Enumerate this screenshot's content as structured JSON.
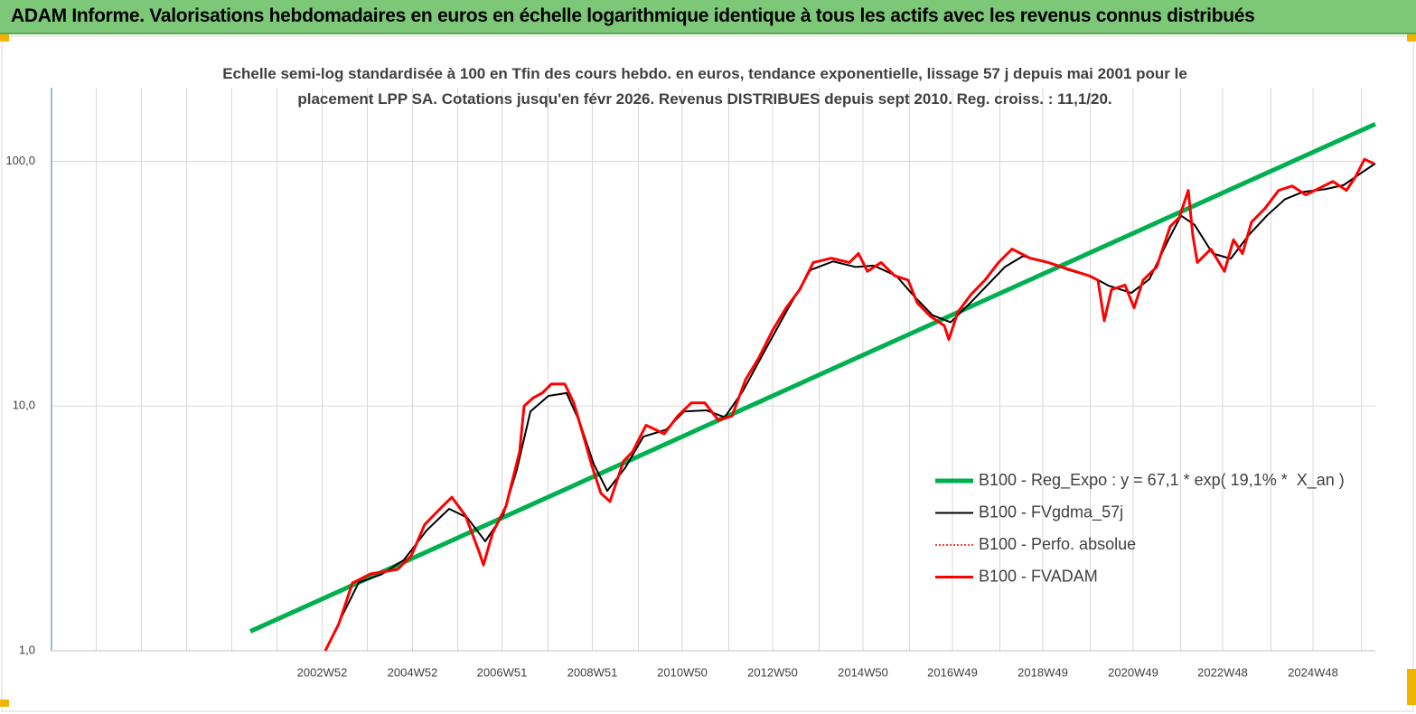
{
  "chart_data": {
    "type": "line",
    "suptitle": "ADAM Informe. Valorisations hebdomadaires en euros en échelle logarithmique identique à tous les actifs avec les revenus connus distribués",
    "title": "Echelle semi-log standardisée à 100 en Tfin des cours hebdo. en euros, tendance exponentielle, lissage 57 j depuis mai 2001 pour le placement LPP SA. Cotations jusqu'en févr 2026. Revenus DISTRIBUES depuis sept 2010. Reg. croiss. : 11,1/20.",
    "y_scale": "log",
    "grid": true,
    "legend_position": "lower right",
    "xlim": [
      1997.0,
      2026.3
    ],
    "xticks": [
      {
        "value": 2002.99,
        "label": "2002W52"
      },
      {
        "value": 2004.99,
        "label": "2004W52"
      },
      {
        "value": 2006.97,
        "label": "2006W51"
      },
      {
        "value": 2008.97,
        "label": "2008W51"
      },
      {
        "value": 2010.96,
        "label": "2010W50"
      },
      {
        "value": 2012.96,
        "label": "2012W50"
      },
      {
        "value": 2014.96,
        "label": "2014W50"
      },
      {
        "value": 2016.94,
        "label": "2016W49"
      },
      {
        "value": 2018.94,
        "label": "2018W49"
      },
      {
        "value": 2020.94,
        "label": "2020W49"
      },
      {
        "value": 2022.92,
        "label": "2022W48"
      },
      {
        "value": 2024.92,
        "label": "2024W48"
      }
    ],
    "ylim": [
      1,
      200
    ],
    "yticks": [
      {
        "value": 1,
        "label": "1,0"
      },
      {
        "value": 10,
        "label": "10,0"
      },
      {
        "value": 100,
        "label": "100,0"
      }
    ],
    "series": [
      {
        "name": "B100 - Reg_Expo : y = 67,1 * exp( 19,1% *  X_an )",
        "color": "#00b050",
        "width": 5,
        "dash": "solid",
        "x": [
          2001.4,
          2026.3
        ],
        "values": [
          1.2,
          142
        ]
      },
      {
        "name": "B100 - FVgdma_57j",
        "color": "#000000",
        "width": 2,
        "dash": "solid",
        "x": [
          2003.4,
          2003.8,
          2004.3,
          2004.8,
          2005.3,
          2005.8,
          2006.2,
          2006.6,
          2007.0,
          2007.3,
          2007.6,
          2008.0,
          2008.4,
          2008.7,
          2009.0,
          2009.3,
          2009.7,
          2010.1,
          2010.6,
          2011.0,
          2011.5,
          2011.9,
          2012.3,
          2012.8,
          2013.3,
          2013.8,
          2014.3,
          2014.8,
          2015.2,
          2015.7,
          2016.1,
          2016.5,
          2016.9,
          2017.3,
          2017.7,
          2018.1,
          2018.5,
          2019.0,
          2019.5,
          2020.0,
          2020.4,
          2020.9,
          2021.3,
          2021.7,
          2022.0,
          2022.3,
          2022.7,
          2023.1,
          2023.5,
          2023.9,
          2024.3,
          2024.7,
          2025.2,
          2025.6,
          2026.0,
          2026.3
        ],
        "values": [
          1.35,
          1.9,
          2.05,
          2.35,
          3.1,
          3.8,
          3.5,
          2.8,
          3.6,
          5.5,
          9.5,
          11,
          11.3,
          8.5,
          5.8,
          4.5,
          5.6,
          7.5,
          8.0,
          9.5,
          9.6,
          9.0,
          11.5,
          17,
          25,
          36,
          39,
          37,
          37.5,
          34,
          28,
          23.5,
          22,
          26,
          31,
          37,
          41,
          39,
          36,
          34,
          31,
          29,
          33,
          47,
          60,
          55,
          42,
          40,
          50,
          60,
          70,
          75,
          77,
          80,
          90,
          98
        ]
      },
      {
        "name": "B100 - Perfo. absolue",
        "color": "#ff0000",
        "width": 1.5,
        "dash": "dotted",
        "x": [
          2003.06,
          2003.36,
          2003.66,
          2004.06,
          2004.66,
          2004.96,
          2005.26,
          2005.66,
          2005.86,
          2006.16,
          2006.46,
          2006.56,
          2006.76,
          2007.06,
          2007.36,
          2007.46,
          2007.66,
          2007.86,
          2008.06,
          2008.36,
          2008.56,
          2008.76,
          2008.96,
          2009.16,
          2009.36,
          2009.66,
          2009.86,
          2010.16,
          2010.56,
          2010.86,
          2011.16,
          2011.46,
          2011.76,
          2012.06,
          2012.36,
          2012.66,
          2012.96,
          2013.26,
          2013.56,
          2013.86,
          2014.26,
          2014.66,
          2014.86,
          2015.06,
          2015.36,
          2015.66,
          2015.96,
          2016.16,
          2016.46,
          2016.76,
          2016.86,
          2017.06,
          2017.36,
          2017.66,
          2017.96,
          2018.26,
          2018.66,
          2019.06,
          2019.36,
          2019.66,
          2019.96,
          2020.16,
          2020.3,
          2020.46,
          2020.76,
          2020.96,
          2021.16,
          2021.46,
          2021.76,
          2021.96,
          2022.16,
          2022.26,
          2022.36,
          2022.66,
          2022.96,
          2023.16,
          2023.36,
          2023.56,
          2023.86,
          2024.16,
          2024.46,
          2024.76,
          2025.16,
          2025.36,
          2025.66,
          2025.86,
          2026.06,
          2026.26
        ],
        "values": [
          1.0,
          1.29,
          1.89,
          2.06,
          2.15,
          2.44,
          3.28,
          3.9,
          4.24,
          3.57,
          2.55,
          2.24,
          3.02,
          3.9,
          6.5,
          10,
          10.8,
          11.3,
          12.3,
          12.3,
          10.3,
          7.7,
          5.7,
          4.4,
          4.07,
          5.95,
          6.5,
          8.35,
          7.7,
          9.1,
          10.3,
          10.3,
          8.75,
          9.1,
          12.8,
          15.8,
          20.4,
          25.2,
          29.9,
          38.6,
          40.2,
          38.6,
          42,
          35.5,
          38.6,
          34.1,
          32.7,
          26.4,
          23.2,
          21.3,
          18.7,
          24.2,
          28.7,
          32.7,
          38.6,
          43.8,
          40.2,
          38.6,
          37,
          35.5,
          34.1,
          32.7,
          22.3,
          29.9,
          31.2,
          25.2,
          32.7,
          37,
          54.2,
          58.9,
          76.1,
          49.9,
          38.6,
          43.8,
          35.5,
          47.8,
          42,
          56.5,
          64.3,
          76.1,
          79.3,
          72.9,
          79.3,
          82.8,
          76.1,
          86.4,
          102,
          98
        ]
      },
      {
        "name": "B100 - FVADAM",
        "color": "#ff0000",
        "width": 3,
        "dash": "solid",
        "x": [
          2003.06,
          2003.36,
          2003.66,
          2004.06,
          2004.66,
          2004.96,
          2005.26,
          2005.66,
          2005.86,
          2006.16,
          2006.46,
          2006.56,
          2006.76,
          2007.06,
          2007.36,
          2007.46,
          2007.66,
          2007.86,
          2008.06,
          2008.36,
          2008.56,
          2008.76,
          2008.96,
          2009.16,
          2009.36,
          2009.66,
          2009.86,
          2010.16,
          2010.56,
          2010.86,
          2011.16,
          2011.46,
          2011.76,
          2012.06,
          2012.36,
          2012.66,
          2012.96,
          2013.26,
          2013.56,
          2013.86,
          2014.26,
          2014.66,
          2014.86,
          2015.06,
          2015.36,
          2015.66,
          2015.96,
          2016.16,
          2016.46,
          2016.76,
          2016.86,
          2017.06,
          2017.36,
          2017.66,
          2017.96,
          2018.26,
          2018.66,
          2019.06,
          2019.36,
          2019.66,
          2019.96,
          2020.16,
          2020.3,
          2020.46,
          2020.76,
          2020.96,
          2021.16,
          2021.46,
          2021.76,
          2021.96,
          2022.16,
          2022.26,
          2022.36,
          2022.66,
          2022.96,
          2023.16,
          2023.36,
          2023.56,
          2023.86,
          2024.16,
          2024.46,
          2024.76,
          2025.16,
          2025.36,
          2025.66,
          2025.86,
          2026.06,
          2026.26
        ],
        "values": [
          1.0,
          1.29,
          1.89,
          2.06,
          2.15,
          2.44,
          3.28,
          3.9,
          4.24,
          3.57,
          2.55,
          2.24,
          3.02,
          3.9,
          6.5,
          10,
          10.8,
          11.3,
          12.3,
          12.3,
          10.3,
          7.7,
          5.7,
          4.4,
          4.07,
          5.95,
          6.5,
          8.35,
          7.7,
          9.1,
          10.3,
          10.3,
          8.75,
          9.1,
          12.8,
          15.8,
          20.4,
          25.2,
          29.9,
          38.6,
          40.2,
          38.6,
          42,
          35.5,
          38.6,
          34.1,
          32.7,
          26.4,
          23.2,
          21.3,
          18.7,
          24.2,
          28.7,
          32.7,
          38.6,
          43.8,
          40.2,
          38.6,
          37,
          35.5,
          34.1,
          32.7,
          22.3,
          29.9,
          31.2,
          25.2,
          32.7,
          37,
          54.2,
          58.9,
          76.1,
          49.9,
          38.6,
          43.8,
          35.5,
          47.8,
          42,
          56.5,
          64.3,
          76.1,
          79.3,
          72.9,
          79.3,
          82.8,
          76.1,
          86.4,
          102,
          98
        ]
      }
    ]
  }
}
